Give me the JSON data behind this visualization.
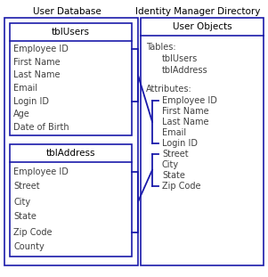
{
  "title_left": "User Database",
  "title_right": "Identity Manager Directory",
  "box_color": "#1a1aaa",
  "text_color": "#404040",
  "bg_color": "#ffffff",
  "tblUsers_title": "tblUsers",
  "tblUsers_fields": [
    "Employee ID",
    "First Name",
    "Last Name",
    "Email",
    "Login ID",
    "Age",
    "Date of Birth"
  ],
  "tblAddress_title": "tblAddress",
  "tblAddress_fields": [
    "Employee ID",
    "Street",
    "City",
    "State",
    "Zip Code",
    "County"
  ],
  "userObjects_title": "User Objects",
  "tables_label": "Tables:",
  "tables_items": [
    "tblUsers",
    "tblAddress"
  ],
  "attributes_label": "Attributes:",
  "attributes_items": [
    "Employee ID",
    "First Name",
    "Last Name",
    "Email",
    "Login ID",
    "Street",
    "City",
    "State",
    "Zip Code"
  ],
  "font_size": 7.0,
  "title_font_size": 7.5
}
